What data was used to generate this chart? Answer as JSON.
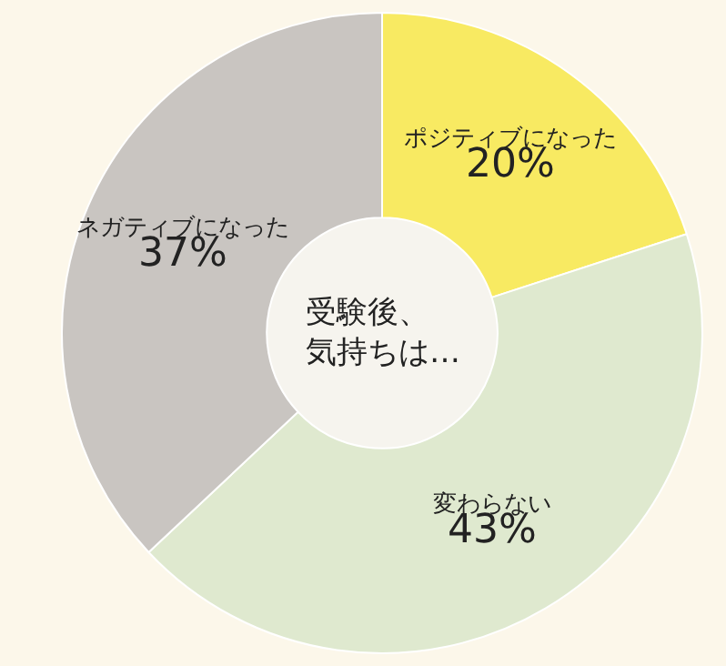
{
  "chart_data": {
    "type": "donut",
    "title": "受験後、気持ちは…",
    "categories": [
      "ポジティブになった",
      "変わらない",
      "ネガティブになった"
    ],
    "values": [
      20,
      43,
      37
    ],
    "value_labels": [
      "20%",
      "43%",
      "37%"
    ],
    "colors": [
      "#f8ea62",
      "#dfe9cf",
      "#c9c5c1"
    ],
    "legend": false
  }
}
